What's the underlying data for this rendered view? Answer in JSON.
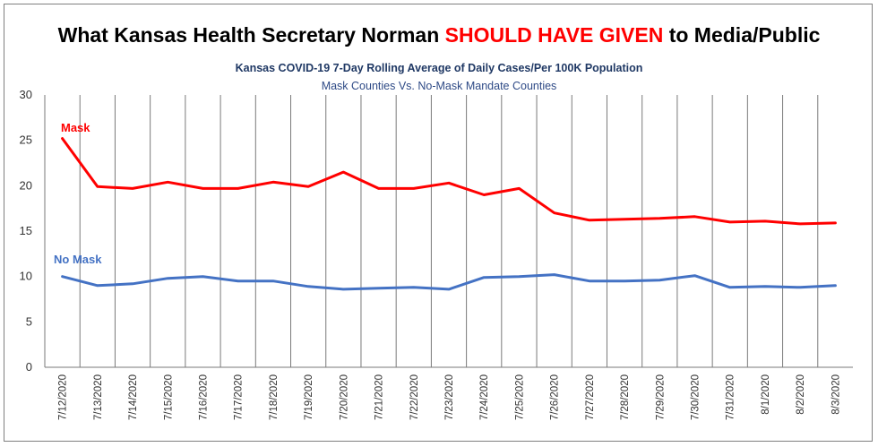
{
  "chart_data": {
    "type": "line",
    "title": {
      "part1": "What Kansas Health Secretary Norman ",
      "highlight": "SHOULD HAVE GIVEN",
      "part2": "  to Media/Public"
    },
    "subtitle": "Kansas COVID-19 7-Day Rolling Average of Daily Cases/Per 100K Population",
    "subtitle2": "Mask Counties Vs. No-Mask Mandate Counties",
    "x": [
      "7/12/2020",
      "7/13/2020",
      "7/14/2020",
      "7/15/2020",
      "7/16/2020",
      "7/17/2020",
      "7/18/2020",
      "7/19/2020",
      "7/20/2020",
      "7/21/2020",
      "7/22/2020",
      "7/23/2020",
      "7/24/2020",
      "7/25/2020",
      "7/26/2020",
      "7/27/2020",
      "7/28/2020",
      "7/29/2020",
      "7/30/2020",
      "7/31/2020",
      "8/1/2020",
      "8/2/2020",
      "8/3/2020"
    ],
    "ylim": [
      0,
      30
    ],
    "yticks": [
      0,
      5,
      10,
      15,
      20,
      25,
      30
    ],
    "grid": "vertical",
    "series": [
      {
        "name": "Mask",
        "color": "#ff0000",
        "values": [
          25.2,
          19.9,
          19.7,
          20.4,
          19.7,
          19.7,
          20.4,
          19.9,
          21.5,
          19.7,
          19.7,
          20.3,
          19.0,
          19.7,
          17.0,
          16.2,
          16.3,
          16.4,
          16.6,
          16.0,
          16.1,
          15.8,
          15.9
        ]
      },
      {
        "name": "No Mask",
        "color": "#4472c4",
        "values": [
          10.0,
          9.0,
          9.2,
          9.8,
          10.0,
          9.5,
          9.5,
          8.9,
          8.6,
          8.7,
          8.8,
          8.6,
          9.9,
          10.0,
          10.2,
          9.5,
          9.5,
          9.6,
          10.1,
          8.8,
          8.9,
          8.8,
          9.0
        ]
      }
    ]
  }
}
